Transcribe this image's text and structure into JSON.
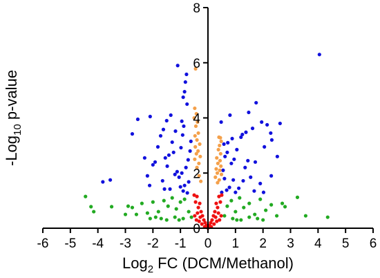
{
  "chart_data": {
    "type": "scatter",
    "title": "",
    "xlabel": {
      "base": "Log",
      "subscript": "2",
      "rest": " FC (DCM/Methanol)"
    },
    "ylabel": {
      "base": "-Log",
      "subscript": "10",
      "rest": " p-value"
    },
    "xlim": [
      -6,
      6
    ],
    "ylim": [
      0,
      8
    ],
    "xticks": [
      "-6",
      "-5",
      "-4",
      "-3",
      "-2",
      "-1",
      "0",
      "1",
      "2",
      "3",
      "4",
      "5",
      "6"
    ],
    "yticks": [
      "0",
      "2",
      "4",
      "6",
      "8"
    ],
    "grid": false,
    "legend": "none",
    "colors": {
      "significant": "#1111dd",
      "moderate": "#f4a04a",
      "not_significant_large_fc": "#22aa22",
      "not_significant_small_fc": "#ee1111"
    },
    "series": [
      {
        "group": "significant",
        "x": [
          4.05,
          -1.1,
          -0.78,
          -0.82,
          -0.85,
          -0.9,
          -0.76,
          1.75,
          1.48,
          0.8,
          -2.1,
          -1.35,
          -2.55,
          -1.5,
          -0.95,
          0.48,
          2.62,
          1.95,
          2.15,
          -0.88,
          1.62,
          2.28,
          -1.62,
          -1.18,
          -2.75,
          1.38,
          1.25,
          -0.92,
          -1.72,
          1.2,
          2.32,
          0.88,
          -0.62,
          0.72,
          0.58,
          -1.3,
          -1.82,
          2.05,
          -0.98,
          1.05,
          -0.65,
          0.7,
          2.52,
          -1.25,
          -1.42,
          0.62,
          -2.3,
          -1.55,
          0.95,
          -0.72,
          1.45,
          -1.92,
          -3.55,
          -3.82,
          1.72,
          0.85,
          -2.0,
          -1.48,
          -0.8,
          1.35,
          0.55,
          -1.12,
          -0.95,
          -1.2,
          -2.2,
          -1.05,
          2.3,
          1.55,
          0.6,
          0.92,
          -1.65,
          -0.7,
          1.9,
          -0.85,
          -1.0,
          0.78,
          1.12,
          -1.38,
          0.68,
          -0.9,
          1.68,
          1.0,
          -0.75,
          -1.58,
          0.5,
          2.02,
          -2.12,
          1.28
        ],
        "y": [
          6.3,
          5.9,
          5.58,
          5.3,
          4.95,
          4.75,
          4.5,
          4.55,
          4.2,
          4.1,
          4.05,
          4.1,
          3.95,
          3.9,
          3.88,
          3.85,
          3.8,
          3.85,
          3.75,
          3.7,
          3.62,
          3.45,
          3.58,
          3.52,
          3.42,
          3.48,
          3.4,
          3.38,
          3.35,
          3.3,
          3.2,
          3.25,
          3.15,
          3.1,
          3.05,
          3.12,
          2.95,
          2.95,
          2.92,
          2.85,
          2.8,
          2.75,
          2.6,
          2.75,
          2.65,
          2.6,
          2.55,
          2.55,
          2.5,
          2.48,
          2.45,
          2.4,
          1.75,
          1.68,
          2.4,
          2.35,
          2.3,
          2.25,
          2.2,
          2.2,
          2.1,
          2.05,
          2.0,
          1.95,
          1.9,
          1.85,
          1.9,
          1.85,
          1.8,
          1.75,
          1.72,
          1.68,
          1.62,
          1.55,
          1.5,
          1.48,
          1.45,
          1.42,
          1.38,
          1.35,
          1.35,
          1.3,
          1.28,
          1.42,
          1.3,
          1.3,
          1.55,
          1.72
        ]
      },
      {
        "group": "moderate",
        "x": [
          -0.45,
          -0.48,
          -0.42,
          -0.5,
          -0.38,
          -0.44,
          -0.35,
          -0.47,
          -0.4,
          -0.3,
          -0.46,
          -0.36,
          -0.42,
          -0.28,
          -0.48,
          -0.33,
          -0.4,
          0.45,
          0.4,
          0.48,
          0.42,
          0.38,
          0.46,
          0.32,
          0.44,
          0.36,
          0.47,
          0.3,
          0.43,
          0.34,
          0.49,
          0.27,
          0.41,
          -0.32,
          0.35,
          -0.26
        ],
        "y": [
          5.78,
          4.35,
          4.15,
          4.0,
          3.85,
          3.7,
          3.45,
          3.35,
          3.2,
          3.05,
          2.95,
          2.8,
          2.7,
          2.6,
          2.5,
          2.35,
          2.2,
          3.28,
          3.3,
          3.15,
          3.0,
          2.85,
          2.7,
          2.55,
          2.45,
          2.35,
          2.25,
          2.15,
          2.1,
          2.0,
          1.95,
          1.85,
          1.75,
          1.9,
          1.65,
          1.7
        ]
      },
      {
        "group": "not_significant_large_fc",
        "x": [
          -4.45,
          -4.25,
          -4.15,
          -3.5,
          -3.0,
          -2.75,
          -2.6,
          -2.4,
          -2.2,
          -2.0,
          -1.8,
          -1.6,
          -1.45,
          -1.3,
          -1.15,
          -1.0,
          -0.85,
          -0.7,
          -0.6,
          0.6,
          0.7,
          0.85,
          1.0,
          1.15,
          1.3,
          1.5,
          1.7,
          1.9,
          2.1,
          2.3,
          2.5,
          2.8,
          3.25,
          3.55,
          4.35,
          -2.1,
          -1.9,
          -1.7,
          -1.5,
          -1.2,
          -0.9,
          0.9,
          1.2,
          1.5,
          1.8,
          2.0,
          -2.9,
          2.7,
          1.05,
          -1.05
        ],
        "y": [
          1.15,
          0.78,
          0.6,
          0.78,
          0.5,
          0.75,
          0.5,
          0.9,
          0.55,
          0.95,
          0.6,
          1.0,
          0.8,
          1.1,
          0.7,
          0.95,
          1.05,
          0.6,
          0.4,
          0.45,
          0.8,
          1.0,
          0.6,
          1.1,
          0.75,
          0.9,
          0.5,
          1.05,
          0.65,
          0.85,
          0.45,
          0.78,
          1.12,
          0.45,
          0.4,
          0.35,
          0.4,
          0.35,
          0.3,
          0.4,
          0.35,
          0.35,
          0.3,
          0.4,
          0.35,
          0.3,
          0.8,
          0.9,
          0.3,
          0.3
        ]
      },
      {
        "group": "not_significant_small_fc",
        "x": [
          -0.5,
          -0.45,
          -0.4,
          -0.35,
          -0.3,
          -0.25,
          -0.2,
          -0.15,
          -0.1,
          -0.05,
          0.0,
          0.05,
          0.1,
          0.15,
          0.2,
          0.25,
          0.3,
          0.35,
          0.4,
          0.45,
          0.5,
          -0.48,
          -0.42,
          -0.38,
          -0.32,
          -0.28,
          -0.22,
          0.22,
          0.28,
          0.32,
          0.38,
          0.42,
          0.48,
          -0.12,
          0.12,
          -0.02,
          0.02
        ],
        "y": [
          1.2,
          0.95,
          1.15,
          0.75,
          0.9,
          0.6,
          0.45,
          0.3,
          0.2,
          0.1,
          0.05,
          0.1,
          0.2,
          0.3,
          0.45,
          0.6,
          0.9,
          0.75,
          1.15,
          0.95,
          1.2,
          0.45,
          0.3,
          0.55,
          0.25,
          0.4,
          0.15,
          0.15,
          0.4,
          0.25,
          0.55,
          0.3,
          0.45,
          0.05,
          0.05,
          0.02,
          0.02
        ]
      }
    ]
  }
}
